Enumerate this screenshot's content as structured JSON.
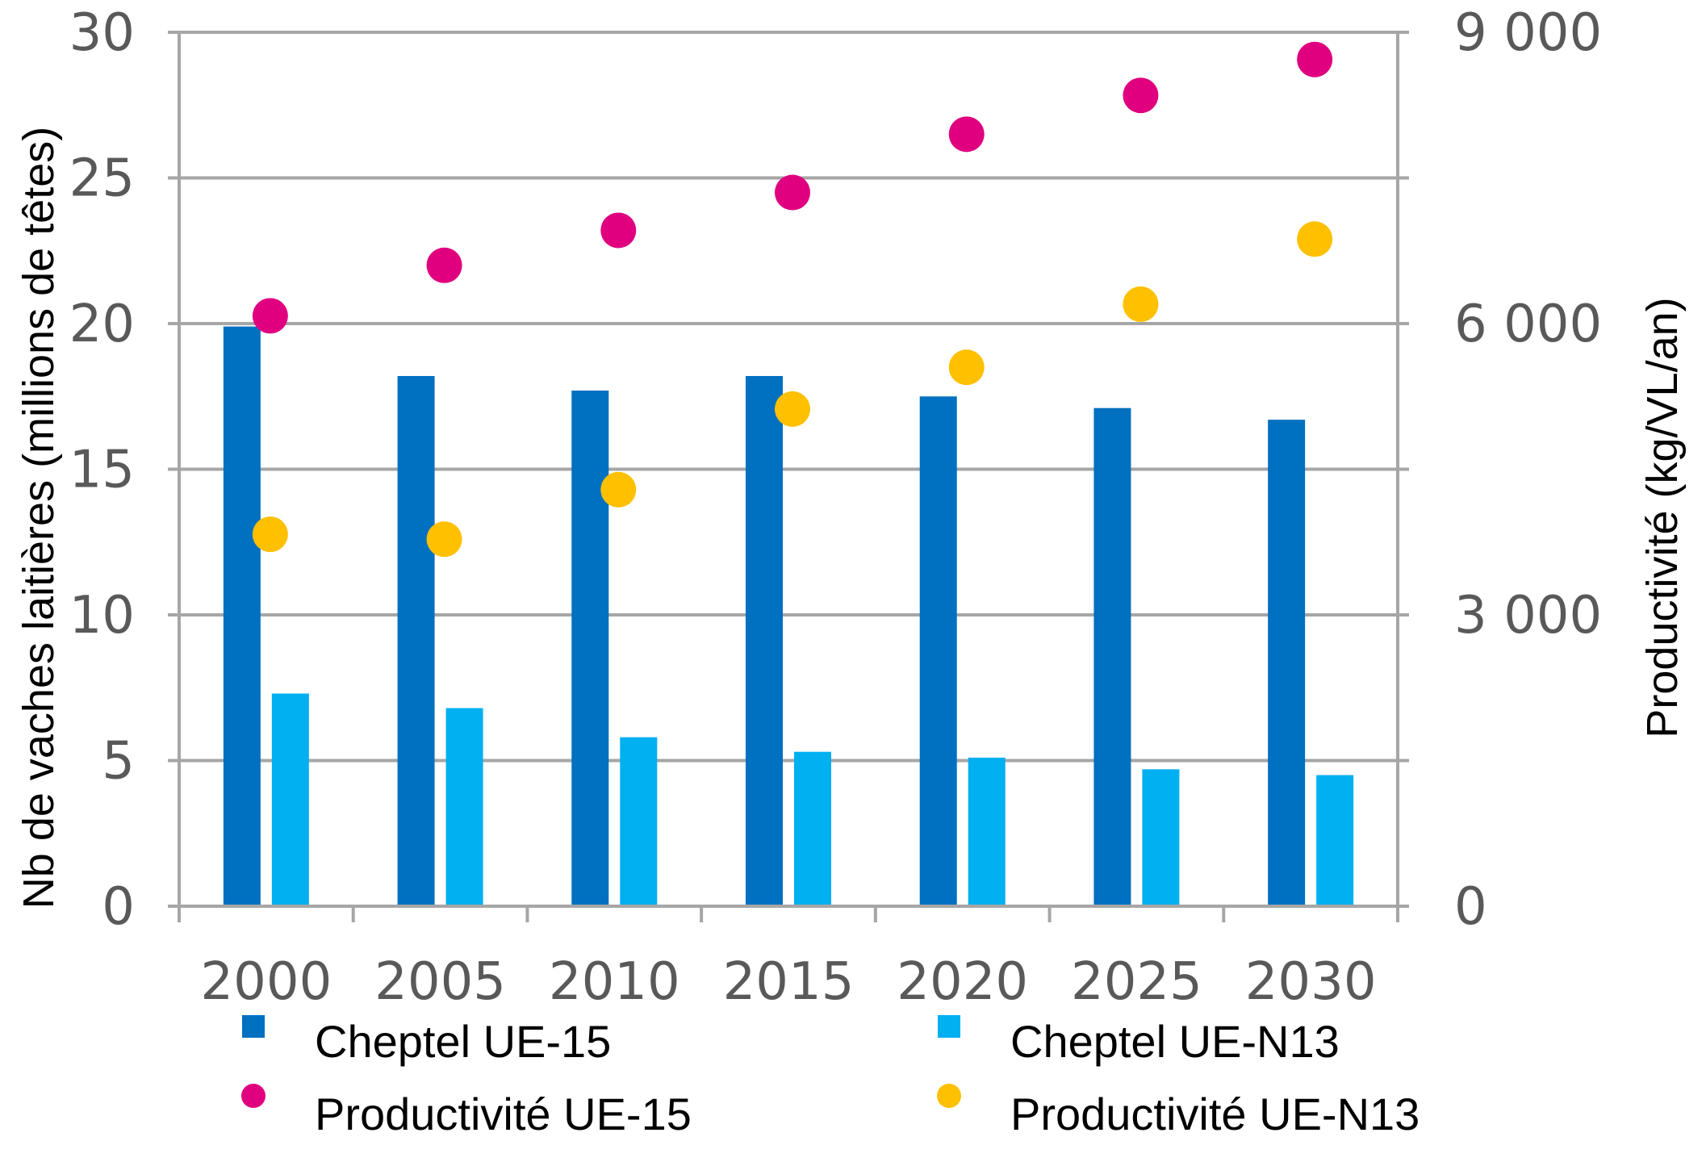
{
  "chart_data": {
    "type": "bar",
    "categories": [
      "2000",
      "2005",
      "2010",
      "2015",
      "2020",
      "2025",
      "2030"
    ],
    "y_left": {
      "label": "Nb de vaches laitières (millions de têtes)",
      "ticks": [
        "0",
        "5",
        "10",
        "15",
        "20",
        "25",
        "30"
      ],
      "lim": [
        0,
        30
      ]
    },
    "y_right": {
      "label": "Productivité (kg/VL/an)",
      "ticks": [
        "0",
        "3 000",
        "6 000",
        "9 000"
      ],
      "lim": [
        0,
        9000
      ]
    },
    "grid": true,
    "legend_position": "bottom",
    "series": [
      {
        "name": "Cheptel UE-15",
        "kind": "bar",
        "axis": "left",
        "color": "#0070C0",
        "values": [
          19.9,
          18.2,
          17.7,
          18.2,
          17.5,
          17.1,
          16.7
        ]
      },
      {
        "name": "Cheptel UE-N13",
        "kind": "bar",
        "axis": "left",
        "color": "#00B0F0",
        "values": [
          7.3,
          6.8,
          5.8,
          5.3,
          5.1,
          4.7,
          4.5
        ]
      },
      {
        "name": "Productivité UE-15",
        "kind": "scatter",
        "axis": "right",
        "color": "#E0007F",
        "values": [
          6080,
          6600,
          6960,
          7350,
          7950,
          8350,
          8720
        ]
      },
      {
        "name": "Productivité UE-N13",
        "kind": "scatter",
        "axis": "right",
        "color": "#FFC000",
        "values": [
          3830,
          3780,
          4290,
          5120,
          5550,
          6200,
          6870
        ]
      }
    ]
  }
}
